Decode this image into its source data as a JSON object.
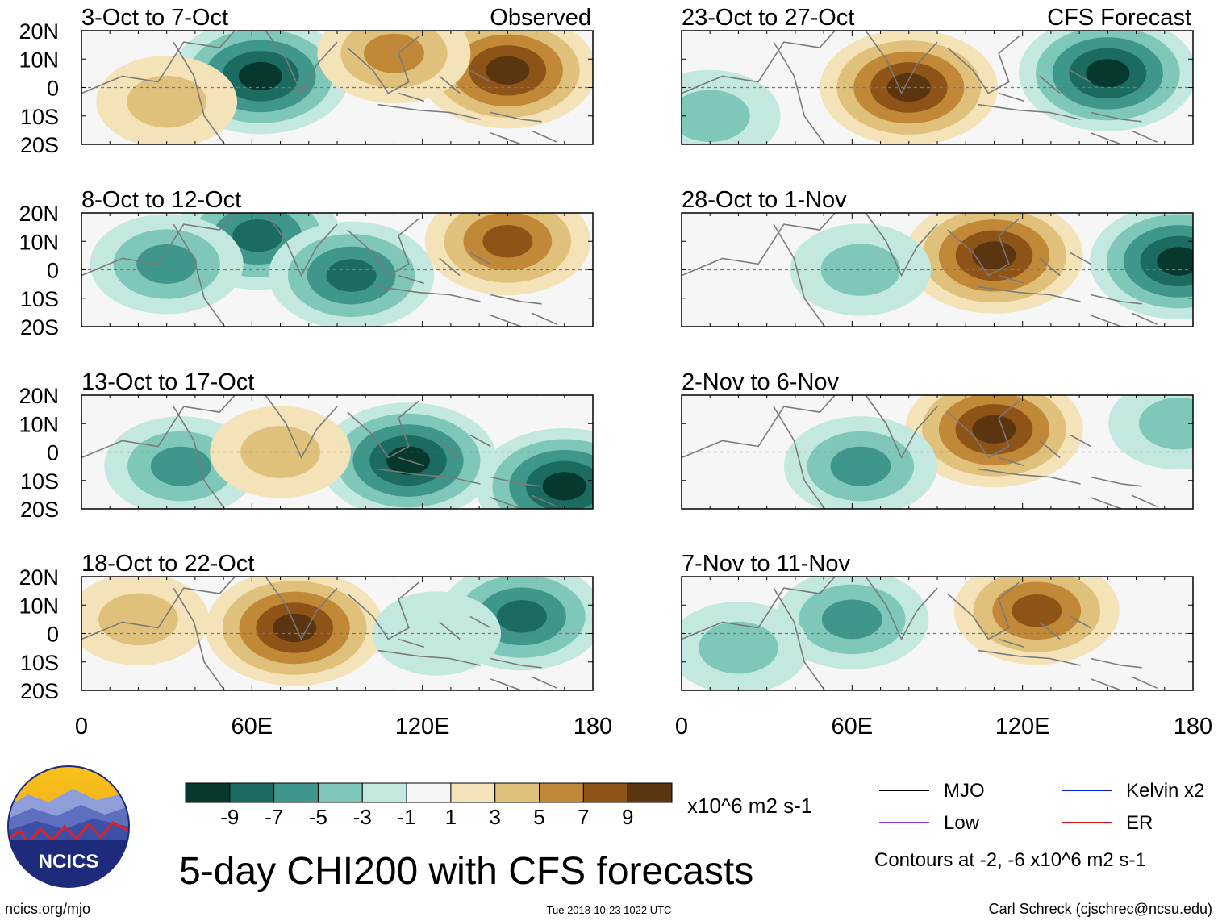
{
  "chart_data": {
    "type": "heatmap",
    "title": "5-day CHI200 with CFS forecasts",
    "variable": "CHI200",
    "units": "x10^6 m2 s-1",
    "observed_label": "Observed",
    "forecast_label": "CFS Forecast",
    "lon_ticks": [
      "0",
      "60E",
      "120E",
      "180"
    ],
    "lat_ticks": [
      "20N",
      "10N",
      "0",
      "10S",
      "20S"
    ],
    "xlim": [
      0,
      180
    ],
    "ylim": [
      -20,
      20
    ],
    "colorbar": {
      "tick_labels": [
        "-9",
        "-7",
        "-5",
        "-3",
        "-1",
        "1",
        "3",
        "5",
        "7",
        "9"
      ],
      "colors": [
        "#07382e",
        "#1b6b60",
        "#3f968b",
        "#7fc7b9",
        "#c3e8df",
        "#f6f6f6",
        "#f4e2b8",
        "#dfc17c",
        "#c18838",
        "#8e5316",
        "#5a3510"
      ]
    },
    "legend": [
      {
        "label": "MJO",
        "color": "#000000"
      },
      {
        "label": "Kelvin x2",
        "color": "#0022dd"
      },
      {
        "label": "Low",
        "color": "#9933dd"
      },
      {
        "label": "ER",
        "color": "#dd1111"
      }
    ],
    "contour_note": "Contours at -2, -6 x10^6 m2 s-1",
    "panels": [
      {
        "period": "3-Oct to 7-Oct",
        "kind": "observed",
        "anomalies": [
          {
            "lon": 63,
            "lat": 4,
            "value": -9
          },
          {
            "lon": 150,
            "lat": 6,
            "value": 9
          },
          {
            "lon": 110,
            "lat": 12,
            "value": 5
          },
          {
            "lon": 30,
            "lat": -5,
            "value": 3
          }
        ]
      },
      {
        "period": "8-Oct to 12-Oct",
        "kind": "observed",
        "anomalies": [
          {
            "lon": 62,
            "lat": 12,
            "value": -7
          },
          {
            "lon": 95,
            "lat": -2,
            "value": -7
          },
          {
            "lon": 30,
            "lat": 2,
            "value": -5
          },
          {
            "lon": 150,
            "lat": 10,
            "value": 7
          }
        ]
      },
      {
        "period": "13-Oct to 17-Oct",
        "kind": "observed",
        "anomalies": [
          {
            "lon": 115,
            "lat": -3,
            "value": -9
          },
          {
            "lon": 170,
            "lat": -12,
            "value": -9
          },
          {
            "lon": 35,
            "lat": -5,
            "value": -5
          },
          {
            "lon": 70,
            "lat": 0,
            "value": 3
          }
        ]
      },
      {
        "period": "18-Oct to 22-Oct",
        "kind": "observed",
        "anomalies": [
          {
            "lon": 75,
            "lat": 2,
            "value": 9
          },
          {
            "lon": 155,
            "lat": 6,
            "value": -7
          },
          {
            "lon": 125,
            "lat": 0,
            "value": -1
          },
          {
            "lon": 20,
            "lat": 5,
            "value": 3
          }
        ]
      },
      {
        "period": "23-Oct to 27-Oct",
        "kind": "forecast",
        "anomalies": [
          {
            "lon": 80,
            "lat": 0,
            "value": 9
          },
          {
            "lon": 150,
            "lat": 5,
            "value": -9
          },
          {
            "lon": 10,
            "lat": -10,
            "value": -3
          }
        ]
      },
      {
        "period": "28-Oct to 1-Nov",
        "kind": "forecast",
        "anomalies": [
          {
            "lon": 110,
            "lat": 5,
            "value": 9
          },
          {
            "lon": 175,
            "lat": 3,
            "value": -9
          },
          {
            "lon": 63,
            "lat": 0,
            "value": -3
          }
        ]
      },
      {
        "period": "2-Nov to 6-Nov",
        "kind": "forecast",
        "anomalies": [
          {
            "lon": 110,
            "lat": 8,
            "value": 9
          },
          {
            "lon": 63,
            "lat": -5,
            "value": -5
          },
          {
            "lon": 175,
            "lat": 10,
            "value": -3
          }
        ]
      },
      {
        "period": "7-Nov to 11-Nov",
        "kind": "forecast",
        "anomalies": [
          {
            "lon": 125,
            "lat": 8,
            "value": 7
          },
          {
            "lon": 60,
            "lat": 5,
            "value": -5
          },
          {
            "lon": 20,
            "lat": -5,
            "value": -3
          }
        ]
      }
    ]
  },
  "footer": {
    "logo_text": "NCICS",
    "site": "ncics.org/mjo",
    "timestamp": "Tue 2018-10-23 1022 UTC",
    "author": "Carl Schreck (cjschrec@ncsu.edu)"
  }
}
